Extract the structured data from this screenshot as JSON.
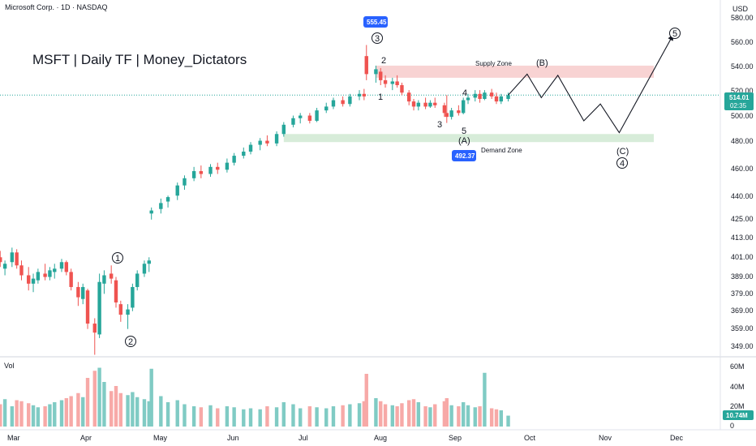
{
  "header": {
    "instrument": "Microsoft Corp. · 1D · NASDAQ",
    "currency": "USD"
  },
  "watermark": "MSFT | Daily TF | Money_Dictators",
  "volume_title": "Vol",
  "price_axis": {
    "ticks": [
      "580.00",
      "560.00",
      "540.00",
      "520.00",
      "500.00",
      "480.00",
      "460.00",
      "440.00",
      "425.00",
      "413.00",
      "401.00",
      "389.00",
      "379.00",
      "369.00",
      "359.00",
      "349.00"
    ],
    "last_price": "514.01",
    "countdown": "02:35"
  },
  "volume_axis": {
    "ticks": [
      "60M",
      "40M",
      "20M",
      "0"
    ],
    "last_volume": "10.74M"
  },
  "time_axis": {
    "ticks": [
      "Mar",
      "Apr",
      "May",
      "Jun",
      "Jul",
      "Aug",
      "Sep",
      "Oct",
      "Nov",
      "Dec"
    ]
  },
  "annotations": {
    "high_tag": "555.45",
    "low_tag": "492.37",
    "supply_zone": "Supply Zone",
    "demand_zone": "Demand Zone",
    "waves": {
      "w1_circle": "1",
      "w2_circle": "2",
      "w3_circle": "3",
      "w4_circle": "4",
      "w5_circle": "5",
      "sub_2": "2",
      "sub_1": "1",
      "sub_3": "3",
      "sub_4": "4",
      "sub_5": "5",
      "A": "(A)",
      "B": "(B)",
      "C": "(C)"
    }
  },
  "colors": {
    "up": "#26a69a",
    "down": "#ef5350",
    "up_vol": "#80cbc4",
    "down_vol": "#f7a9a7",
    "tag_blue": "#2962ff",
    "supply": "#f8d3d3",
    "demand": "#d7ecd9",
    "price_line": "#26a69a"
  },
  "chart_data": {
    "type": "candlestick",
    "title": "MSFT | Daily TF | Money_Dictators",
    "x_range": [
      "2025-02-24",
      "2025-12-10"
    ],
    "y_scale": "log",
    "y_ticks": [
      580,
      560,
      540,
      520,
      500,
      480,
      460,
      440,
      425,
      413,
      401,
      389,
      379,
      369,
      359,
      349
    ],
    "last_price": 514.01,
    "high_marker": 555.45,
    "low_marker": 492.37,
    "supply_zone": [
      528,
      538
    ],
    "demand_zone": [
      478,
      484
    ],
    "candles": [
      {
        "d": "2025-02-24",
        "o": 405,
        "h": 409,
        "l": 397,
        "c": 400,
        "v": 24
      },
      {
        "d": "2025-02-26",
        "o": 400,
        "h": 404,
        "l": 394,
        "c": 397,
        "v": 22
      },
      {
        "d": "2025-02-28",
        "o": 393,
        "h": 398,
        "l": 389,
        "c": 396,
        "v": 27
      },
      {
        "d": "2025-03-03",
        "o": 397,
        "h": 406,
        "l": 394,
        "c": 403,
        "v": 20
      },
      {
        "d": "2025-03-05",
        "o": 403,
        "h": 405,
        "l": 393,
        "c": 395,
        "v": 26
      },
      {
        "d": "2025-03-07",
        "o": 395,
        "h": 398,
        "l": 386,
        "c": 389,
        "v": 25
      },
      {
        "d": "2025-03-10",
        "o": 389,
        "h": 394,
        "l": 380,
        "c": 384,
        "v": 23
      },
      {
        "d": "2025-03-12",
        "o": 384,
        "h": 390,
        "l": 379,
        "c": 387,
        "v": 21
      },
      {
        "d": "2025-03-14",
        "o": 386,
        "h": 393,
        "l": 384,
        "c": 391,
        "v": 19
      },
      {
        "d": "2025-03-17",
        "o": 390,
        "h": 396,
        "l": 386,
        "c": 388,
        "v": 20
      },
      {
        "d": "2025-03-19",
        "o": 388,
        "h": 394,
        "l": 386,
        "c": 392,
        "v": 22
      },
      {
        "d": "2025-03-21",
        "o": 391,
        "h": 396,
        "l": 387,
        "c": 393,
        "v": 24
      },
      {
        "d": "2025-03-24",
        "o": 393,
        "h": 399,
        "l": 391,
        "c": 397,
        "v": 26
      },
      {
        "d": "2025-03-26",
        "o": 397,
        "h": 398,
        "l": 389,
        "c": 391,
        "v": 28
      },
      {
        "d": "2025-03-28",
        "o": 391,
        "h": 393,
        "l": 380,
        "c": 382,
        "v": 30
      },
      {
        "d": "2025-03-31",
        "o": 382,
        "h": 385,
        "l": 371,
        "c": 376,
        "v": 33
      },
      {
        "d": "2025-04-02",
        "o": 375,
        "h": 384,
        "l": 372,
        "c": 382,
        "v": 29
      },
      {
        "d": "2025-04-04",
        "o": 380,
        "h": 381,
        "l": 358,
        "c": 361,
        "v": 48
      },
      {
        "d": "2025-04-07",
        "o": 361,
        "h": 364,
        "l": 344,
        "c": 356,
        "v": 55
      },
      {
        "d": "2025-04-09",
        "o": 355,
        "h": 390,
        "l": 353,
        "c": 385,
        "v": 58
      },
      {
        "d": "2025-04-11",
        "o": 384,
        "h": 392,
        "l": 378,
        "c": 389,
        "v": 44
      },
      {
        "d": "2025-04-14",
        "o": 390,
        "h": 395,
        "l": 384,
        "c": 387,
        "v": 35
      },
      {
        "d": "2025-04-16",
        "o": 386,
        "h": 388,
        "l": 370,
        "c": 373,
        "v": 40
      },
      {
        "d": "2025-04-18",
        "o": 372,
        "h": 374,
        "l": 362,
        "c": 366,
        "v": 33
      },
      {
        "d": "2025-04-21",
        "o": 366,
        "h": 372,
        "l": 358,
        "c": 369,
        "v": 31
      },
      {
        "d": "2025-04-23",
        "o": 370,
        "h": 384,
        "l": 368,
        "c": 382,
        "v": 34
      },
      {
        "d": "2025-04-25",
        "o": 382,
        "h": 392,
        "l": 380,
        "c": 390,
        "v": 29
      },
      {
        "d": "2025-04-28",
        "o": 390,
        "h": 398,
        "l": 388,
        "c": 396,
        "v": 27
      },
      {
        "d": "2025-04-30",
        "o": 396,
        "h": 400,
        "l": 391,
        "c": 398,
        "v": 25
      },
      {
        "d": "2025-05-01",
        "o": 428,
        "h": 432,
        "l": 424,
        "c": 430,
        "v": 57
      },
      {
        "d": "2025-05-05",
        "o": 431,
        "h": 438,
        "l": 428,
        "c": 435,
        "v": 30
      },
      {
        "d": "2025-05-08",
        "o": 436,
        "h": 440,
        "l": 432,
        "c": 439,
        "v": 24
      },
      {
        "d": "2025-05-12",
        "o": 440,
        "h": 449,
        "l": 437,
        "c": 447,
        "v": 26
      },
      {
        "d": "2025-05-15",
        "o": 447,
        "h": 454,
        "l": 444,
        "c": 452,
        "v": 22
      },
      {
        "d": "2025-05-19",
        "o": 452,
        "h": 460,
        "l": 450,
        "c": 457,
        "v": 20
      },
      {
        "d": "2025-05-22",
        "o": 457,
        "h": 461,
        "l": 452,
        "c": 455,
        "v": 19
      },
      {
        "d": "2025-05-26",
        "o": 455,
        "h": 462,
        "l": 453,
        "c": 460,
        "v": 21
      },
      {
        "d": "2025-05-29",
        "o": 460,
        "h": 463,
        "l": 455,
        "c": 458,
        "v": 18
      },
      {
        "d": "2025-06-02",
        "o": 458,
        "h": 466,
        "l": 456,
        "c": 463,
        "v": 20
      },
      {
        "d": "2025-06-05",
        "o": 463,
        "h": 470,
        "l": 461,
        "c": 468,
        "v": 19
      },
      {
        "d": "2025-06-09",
        "o": 468,
        "h": 474,
        "l": 466,
        "c": 471,
        "v": 17
      },
      {
        "d": "2025-06-12",
        "o": 471,
        "h": 478,
        "l": 469,
        "c": 476,
        "v": 18
      },
      {
        "d": "2025-06-16",
        "o": 476,
        "h": 481,
        "l": 472,
        "c": 479,
        "v": 17
      },
      {
        "d": "2025-06-19",
        "o": 479,
        "h": 483,
        "l": 475,
        "c": 477,
        "v": 20
      },
      {
        "d": "2025-06-23",
        "o": 477,
        "h": 486,
        "l": 475,
        "c": 484,
        "v": 19
      },
      {
        "d": "2025-06-26",
        "o": 484,
        "h": 493,
        "l": 482,
        "c": 491,
        "v": 24
      },
      {
        "d": "2025-06-30",
        "o": 491,
        "h": 498,
        "l": 489,
        "c": 496,
        "v": 22
      },
      {
        "d": "2025-07-03",
        "o": 496,
        "h": 500,
        "l": 492,
        "c": 498,
        "v": 18
      },
      {
        "d": "2025-07-07",
        "o": 498,
        "h": 500,
        "l": 492,
        "c": 494,
        "v": 20
      },
      {
        "d": "2025-07-10",
        "o": 494,
        "h": 504,
        "l": 493,
        "c": 502,
        "v": 19
      },
      {
        "d": "2025-07-14",
        "o": 502,
        "h": 508,
        "l": 500,
        "c": 505,
        "v": 18
      },
      {
        "d": "2025-07-17",
        "o": 505,
        "h": 512,
        "l": 503,
        "c": 510,
        "v": 20
      },
      {
        "d": "2025-07-21",
        "o": 510,
        "h": 513,
        "l": 505,
        "c": 507,
        "v": 21
      },
      {
        "d": "2025-07-24",
        "o": 507,
        "h": 515,
        "l": 505,
        "c": 513,
        "v": 22
      },
      {
        "d": "2025-07-28",
        "o": 513,
        "h": 518,
        "l": 510,
        "c": 515,
        "v": 23
      },
      {
        "d": "2025-07-30",
        "o": 515,
        "h": 519,
        "l": 510,
        "c": 513,
        "v": 25
      },
      {
        "d": "2025-07-31",
        "o": 546,
        "h": 555.45,
        "l": 526,
        "c": 531,
        "v": 52
      },
      {
        "d": "2025-08-04",
        "o": 531,
        "h": 538,
        "l": 524,
        "c": 535,
        "v": 28
      },
      {
        "d": "2025-08-06",
        "o": 533,
        "h": 536,
        "l": 522,
        "c": 526,
        "v": 25
      },
      {
        "d": "2025-08-08",
        "o": 526,
        "h": 530,
        "l": 520,
        "c": 523,
        "v": 22
      },
      {
        "d": "2025-08-11",
        "o": 523,
        "h": 528,
        "l": 518,
        "c": 525,
        "v": 21
      },
      {
        "d": "2025-08-13",
        "o": 525,
        "h": 530,
        "l": 520,
        "c": 522,
        "v": 20
      },
      {
        "d": "2025-08-15",
        "o": 522,
        "h": 524,
        "l": 514,
        "c": 516,
        "v": 23
      },
      {
        "d": "2025-08-18",
        "o": 516,
        "h": 518,
        "l": 506,
        "c": 509,
        "v": 26
      },
      {
        "d": "2025-08-20",
        "o": 509,
        "h": 511,
        "l": 502,
        "c": 505,
        "v": 27
      },
      {
        "d": "2025-08-22",
        "o": 505,
        "h": 510,
        "l": 502,
        "c": 508,
        "v": 24
      },
      {
        "d": "2025-08-25",
        "o": 508,
        "h": 512,
        "l": 503,
        "c": 505,
        "v": 20
      },
      {
        "d": "2025-08-27",
        "o": 505,
        "h": 510,
        "l": 504,
        "c": 508,
        "v": 19
      },
      {
        "d": "2025-08-29",
        "o": 508,
        "h": 512,
        "l": 504,
        "c": 506,
        "v": 22
      },
      {
        "d": "2025-09-02",
        "o": 506,
        "h": 508,
        "l": 497,
        "c": 500,
        "v": 25
      },
      {
        "d": "2025-09-03",
        "o": 500,
        "h": 514,
        "l": 492.37,
        "c": 497,
        "v": 28
      },
      {
        "d": "2025-09-05",
        "o": 497,
        "h": 504,
        "l": 495,
        "c": 502,
        "v": 21
      },
      {
        "d": "2025-09-08",
        "o": 502,
        "h": 506,
        "l": 498,
        "c": 500,
        "v": 20
      },
      {
        "d": "2025-09-10",
        "o": 500,
        "h": 512,
        "l": 499,
        "c": 510,
        "v": 24
      },
      {
        "d": "2025-09-12",
        "o": 510,
        "h": 515,
        "l": 507,
        "c": 512,
        "v": 21
      },
      {
        "d": "2025-09-15",
        "o": 512,
        "h": 518,
        "l": 509,
        "c": 515,
        "v": 19
      },
      {
        "d": "2025-09-17",
        "o": 515,
        "h": 518,
        "l": 508,
        "c": 511,
        "v": 20
      },
      {
        "d": "2025-09-19",
        "o": 511,
        "h": 518,
        "l": 510,
        "c": 516,
        "v": 53
      },
      {
        "d": "2025-09-22",
        "o": 516,
        "h": 519,
        "l": 511,
        "c": 513,
        "v": 18
      },
      {
        "d": "2025-09-24",
        "o": 513,
        "h": 516,
        "l": 507,
        "c": 509,
        "v": 17
      },
      {
        "d": "2025-09-26",
        "o": 509,
        "h": 515,
        "l": 507,
        "c": 513,
        "v": 16
      },
      {
        "d": "2025-09-29",
        "o": 511,
        "h": 516,
        "l": 509,
        "c": 514.01,
        "v": 10.74
      }
    ],
    "projection": [
      {
        "d": "2025-09-29",
        "y": 514
      },
      {
        "d": "2025-10-07",
        "y": 531
      },
      {
        "d": "2025-10-13",
        "y": 512
      },
      {
        "d": "2025-10-20",
        "y": 530
      },
      {
        "d": "2025-10-31",
        "y": 494
      },
      {
        "d": "2025-11-07",
        "y": 507
      },
      {
        "d": "2025-11-15",
        "y": 485
      },
      {
        "d": "2025-12-08",
        "y": 565
      }
    ]
  }
}
